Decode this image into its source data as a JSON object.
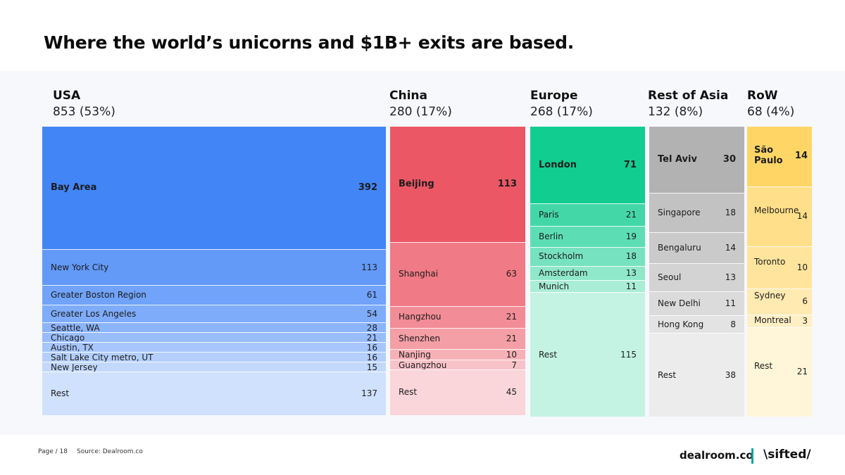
{
  "title": "Where the world’s unicorns and $1B+ exits are based.",
  "footer": {
    "page": "Page / 18",
    "source": "Source: Dealroom.co",
    "brand_left": "dealroom.co",
    "brand_right": "\\sifted/"
  },
  "chart_data": {
    "type": "treemap",
    "title": "Where the world’s unicorns and $1B+ exits are based.",
    "columns": [
      {
        "key": "usa",
        "name": "USA",
        "total_label": "853 (53%)",
        "total": 853,
        "color": "#4285f7",
        "items": [
          {
            "label": "Bay Area",
            "value": 392,
            "value_label": "392"
          },
          {
            "label": "New York City",
            "value": 113,
            "value_label": "113"
          },
          {
            "label": "Greater Boston Region",
            "value": 61,
            "value_label": "61"
          },
          {
            "label": "Greater Los Angeles",
            "value": 54,
            "value_label": "54"
          },
          {
            "label": "Seattle, WA",
            "value": 28,
            "value_label": "28"
          },
          {
            "label": "Chicago",
            "value": 21,
            "value_label": "21"
          },
          {
            "label": "Austin, TX",
            "value": 16,
            "value_label": "16"
          },
          {
            "label": "Salt Lake City metro, UT",
            "value": 16,
            "value_label": "16"
          },
          {
            "label": "New Jersey",
            "value": 15,
            "value_label": "15"
          },
          {
            "label": "Rest",
            "value": 137,
            "value_label": "137"
          }
        ]
      },
      {
        "key": "china",
        "name": "China",
        "total_label": "280 (17%)",
        "total": 280,
        "color": "#ec5765",
        "items": [
          {
            "label": "Beijing",
            "value": 113,
            "value_label": "113"
          },
          {
            "label": "Shanghai",
            "value": 63,
            "value_label": "63"
          },
          {
            "label": "Hangzhou",
            "value": 21,
            "value_label": "21"
          },
          {
            "label": "Shenzhen",
            "value": 21,
            "value_label": "21"
          },
          {
            "label": "Nanjing",
            "value": 10,
            "value_label": "10"
          },
          {
            "label": "Guangzhou",
            "value": 7,
            "value_label": "7"
          },
          {
            "label": "Rest",
            "value": 45,
            "value_label": "45"
          }
        ]
      },
      {
        "key": "europe",
        "name": "Europe",
        "total_label": "268 (17%)",
        "total": 268,
        "color": "#12cd90",
        "items": [
          {
            "label": "London",
            "value": 71,
            "value_label": "71"
          },
          {
            "label": "Paris",
            "value": 21,
            "value_label": "21"
          },
          {
            "label": "Berlin",
            "value": 19,
            "value_label": "19"
          },
          {
            "label": "Stockholm",
            "value": 18,
            "value_label": "18"
          },
          {
            "label": "Amsterdam",
            "value": 13,
            "value_label": "13"
          },
          {
            "label": "Munich",
            "value": 11,
            "value_label": "11"
          },
          {
            "label": "Rest",
            "value": 115,
            "value_label": "115"
          }
        ]
      },
      {
        "key": "rest_of_asia",
        "name": "Rest of Asia",
        "total_label": "132 (8%)",
        "total": 132,
        "color": "#b2b2b2",
        "items": [
          {
            "label": "Tel Aviv",
            "value": 30,
            "value_label": "30"
          },
          {
            "label": "Singapore",
            "value": 18,
            "value_label": "18"
          },
          {
            "label": "Bengaluru",
            "value": 14,
            "value_label": "14"
          },
          {
            "label": "Seoul",
            "value": 13,
            "value_label": "13"
          },
          {
            "label": "New Delhi",
            "value": 11,
            "value_label": "11"
          },
          {
            "label": "Hong Kong",
            "value": 8,
            "value_label": "8"
          },
          {
            "label": "Rest",
            "value": 38,
            "value_label": "38"
          }
        ]
      },
      {
        "key": "row",
        "name": "RoW",
        "total_label": "68 (4%)",
        "total": 68,
        "color": "#ffd566",
        "items": [
          {
            "label": "São Paulo",
            "value": 14,
            "value_label": "14"
          },
          {
            "label": "Melbourne",
            "value": 14,
            "value_label": "14"
          },
          {
            "label": "Toronto",
            "value": 10,
            "value_label": "10"
          },
          {
            "label": "Sydney",
            "value": 6,
            "value_label": "6"
          },
          {
            "label": "Montreal",
            "value": 3,
            "value_label": "3"
          },
          {
            "label": "Rest",
            "value": 21,
            "value_label": "21"
          }
        ]
      }
    ]
  }
}
